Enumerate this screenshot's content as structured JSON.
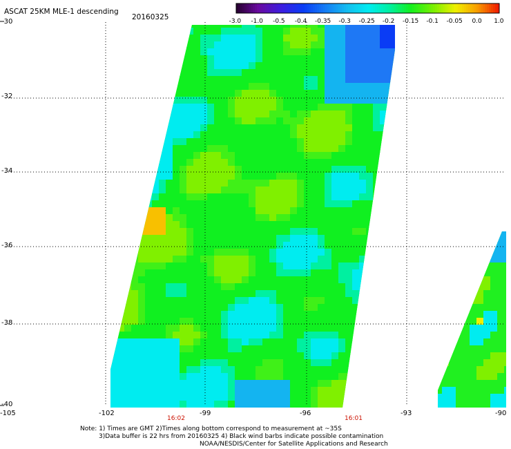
{
  "header": {
    "title": "ASCAT 25KM MLE-1 descending",
    "date": "20160325"
  },
  "colorbar": {
    "labels": [
      "-3.0",
      "-1.0",
      "-0.5",
      "-0.4",
      "-0.35",
      "-0.3",
      "-0.25",
      "-0.2",
      "-0.15",
      "-0.1",
      "-0.05",
      "0.0",
      "1.0"
    ],
    "colors": [
      "#2b0033",
      "#6a0aa0",
      "#3c1ee0",
      "#0a3cf5",
      "#1e78f5",
      "#14b4f0",
      "#00ecf0",
      "#00f0a0",
      "#10f020",
      "#80f000",
      "#f0f000",
      "#f8a000",
      "#f01000"
    ]
  },
  "axes": {
    "lat_labels": [
      "-30",
      "-32",
      "-34",
      "-36",
      "-38",
      "-40"
    ],
    "lon_labels": [
      "-105",
      "-102",
      "-99",
      "-96",
      "-93",
      "-90"
    ]
  },
  "pass_times": [
    "16:02",
    "16:01"
  ],
  "notes": [
    "Note: 1) Times are GMT 2)Times along bottom correspond to measurement at ~35S",
    "3)Data buffer is 22 hrs from 20160325 4) Black wind barbs indicate possible contamination",
    "NOAA/NESDIS/Center for Satellite Applications and Research"
  ]
}
